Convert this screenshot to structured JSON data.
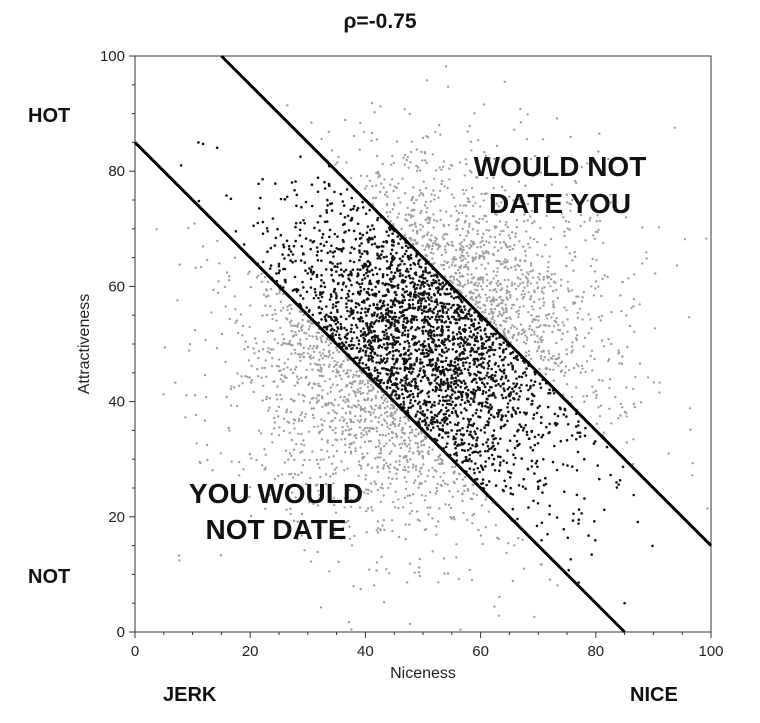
{
  "chart_data": {
    "type": "scatter",
    "title": "ρ=-0.75",
    "xlabel": "Niceness",
    "ylabel": "Attractiveness",
    "xlim": [
      0,
      100
    ],
    "ylim": [
      0,
      100
    ],
    "xticks": [
      "0",
      "20",
      "40",
      "60",
      "80",
      "100"
    ],
    "yticks": [
      "0",
      "20",
      "40",
      "60",
      "80",
      "100"
    ],
    "grid": false,
    "corner_labels": {
      "y_high": "HOT",
      "y_low": "NOT",
      "x_low": "JERK",
      "x_high": "NICE"
    },
    "region_labels": {
      "upper": [
        "WOULD NOT",
        "DATE YOU"
      ],
      "lower": [
        "YOU WOULD",
        "NOT DATE"
      ]
    },
    "boundary_lines": [
      {
        "x0": 0,
        "y0": 85,
        "x1": 85,
        "y1": 0
      },
      {
        "x0": 15,
        "y0": 100,
        "x1": 100,
        "y1": 15
      }
    ],
    "point_population": {
      "count_all": 5000,
      "mean": [
        50,
        50
      ],
      "sd": [
        15,
        15
      ],
      "correlation": 0,
      "seed": 7,
      "colors": {
        "outside_band": "#9e9e9e",
        "inside_band": "#111111"
      }
    },
    "sample_points_inside_band": [
      [
        11,
        85
      ],
      [
        8,
        81
      ],
      [
        33,
        77
      ],
      [
        45,
        60
      ],
      [
        50,
        50
      ],
      [
        60,
        45
      ],
      [
        68,
        38
      ],
      [
        78,
        30
      ],
      [
        85,
        5
      ]
    ]
  }
}
